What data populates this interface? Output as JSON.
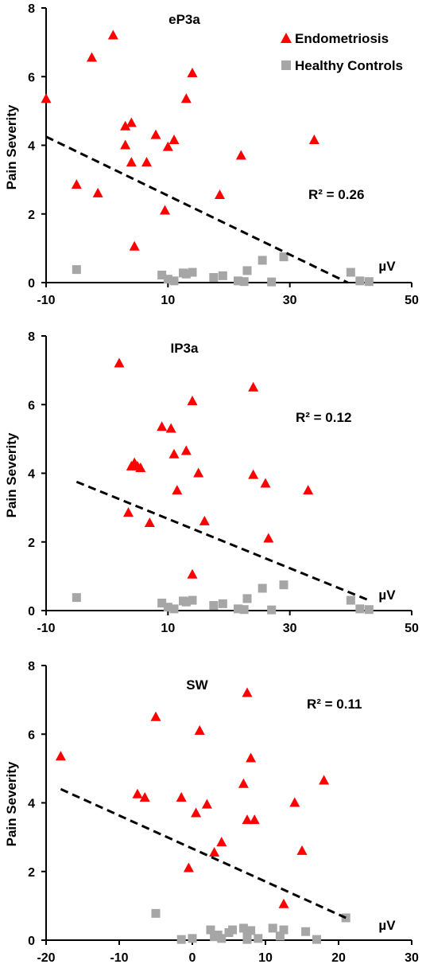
{
  "colors": {
    "endometriosis": "#ff0000",
    "healthy": "#a6a6a6",
    "trendline": "#000000",
    "axis": "#000000"
  },
  "legend": {
    "entries": [
      {
        "label": "Endometriosis",
        "marker": "triangle",
        "color": "#ff0000"
      },
      {
        "label": "Healthy Controls",
        "marker": "square",
        "color": "#a6a6a6"
      }
    ],
    "placement": "top-right of first chart"
  },
  "chart_data": [
    {
      "type": "scatter",
      "title": "eP3a",
      "ylabel": "Pain Severity",
      "unit_label": "µV",
      "r2_label": "R² = 0.26",
      "xlim": [
        -10,
        50
      ],
      "ylim": [
        0,
        8
      ],
      "xticks": [
        -10,
        10,
        30,
        50
      ],
      "yticks": [
        0,
        2,
        4,
        6,
        8
      ],
      "grid": false,
      "series": [
        {
          "name": "Endometriosis",
          "marker": "triangle",
          "points": [
            [
              -10,
              5.35
            ],
            [
              -5,
              2.85
            ],
            [
              -2.5,
              6.55
            ],
            [
              -1.5,
              2.6
            ],
            [
              1,
              7.2
            ],
            [
              3,
              4.55
            ],
            [
              3,
              4.0
            ],
            [
              4,
              4.65
            ],
            [
              4,
              3.5
            ],
            [
              4.5,
              1.05
            ],
            [
              6.5,
              3.5
            ],
            [
              8,
              4.3
            ],
            [
              9.5,
              2.1
            ],
            [
              10,
              3.95
            ],
            [
              11,
              4.15
            ],
            [
              13,
              5.35
            ],
            [
              14,
              6.1
            ],
            [
              18.5,
              2.55
            ],
            [
              22,
              3.7
            ],
            [
              34,
              4.15
            ]
          ]
        },
        {
          "name": "Healthy Controls",
          "marker": "square",
          "points": [
            [
              -5,
              0.38
            ],
            [
              9,
              0.22
            ],
            [
              10,
              0.1
            ],
            [
              11,
              0.05
            ],
            [
              12.5,
              0.28
            ],
            [
              13,
              0.25
            ],
            [
              14,
              0.3
            ],
            [
              17.5,
              0.15
            ],
            [
              19,
              0.2
            ],
            [
              21.5,
              0.05
            ],
            [
              22.5,
              0.03
            ],
            [
              23,
              0.35
            ],
            [
              25.5,
              0.65
            ],
            [
              27,
              0.02
            ],
            [
              29,
              0.75
            ],
            [
              40,
              0.3
            ],
            [
              41.5,
              0.05
            ],
            [
              43,
              0.03
            ]
          ]
        }
      ],
      "trendline": {
        "from": [
          -10,
          4.25
        ],
        "to": [
          39.5,
          0
        ]
      }
    },
    {
      "type": "scatter",
      "title": "IP3a",
      "ylabel": "Pain Severity",
      "unit_label": "µV",
      "r2_label": "R² = 0.12",
      "xlim": [
        -10,
        50
      ],
      "ylim": [
        0,
        8
      ],
      "xticks": [
        -10,
        10,
        30,
        50
      ],
      "yticks": [
        0,
        2,
        4,
        6,
        8
      ],
      "grid": false,
      "series": [
        {
          "name": "Endometriosis",
          "marker": "triangle",
          "points": [
            [
              2,
              7.2
            ],
            [
              3.5,
              2.85
            ],
            [
              4,
              4.2
            ],
            [
              4.5,
              4.3
            ],
            [
              5,
              4.2
            ],
            [
              5.5,
              4.15
            ],
            [
              7,
              2.55
            ],
            [
              9,
              5.35
            ],
            [
              10.5,
              5.3
            ],
            [
              11,
              4.55
            ],
            [
              11.5,
              3.5
            ],
            [
              13,
              4.65
            ],
            [
              14,
              6.1
            ],
            [
              14,
              1.05
            ],
            [
              15,
              4.0
            ],
            [
              16,
              2.6
            ],
            [
              24,
              6.5
            ],
            [
              24,
              3.95
            ],
            [
              26,
              3.7
            ],
            [
              26.5,
              2.1
            ],
            [
              33,
              3.5
            ]
          ]
        },
        {
          "name": "Healthy Controls",
          "marker": "square",
          "points": [
            [
              -5,
              0.38
            ],
            [
              9,
              0.22
            ],
            [
              10,
              0.1
            ],
            [
              11,
              0.05
            ],
            [
              12.5,
              0.28
            ],
            [
              13,
              0.25
            ],
            [
              14,
              0.3
            ],
            [
              17.5,
              0.15
            ],
            [
              19,
              0.2
            ],
            [
              21.5,
              0.05
            ],
            [
              22.5,
              0.03
            ],
            [
              23,
              0.35
            ],
            [
              25.5,
              0.65
            ],
            [
              27,
              0.02
            ],
            [
              29,
              0.75
            ],
            [
              40,
              0.3
            ],
            [
              41.5,
              0.05
            ],
            [
              43,
              0.03
            ]
          ]
        }
      ],
      "trendline": {
        "from": [
          -5,
          3.75
        ],
        "to": [
          43,
          0.3
        ]
      }
    },
    {
      "type": "scatter",
      "title": "SW",
      "ylabel": "Pain Severity",
      "unit_label": "µV",
      "r2_label": "R² = 0.11",
      "xlim": [
        -20,
        30
      ],
      "ylim": [
        0,
        8
      ],
      "xticks": [
        -20,
        -10,
        0,
        10,
        20,
        30
      ],
      "yticks": [
        0,
        2,
        4,
        6,
        8
      ],
      "grid": false,
      "series": [
        {
          "name": "Endometriosis",
          "marker": "triangle",
          "points": [
            [
              -18,
              5.35
            ],
            [
              -7.5,
              4.25
            ],
            [
              -6.5,
              4.15
            ],
            [
              -5,
              6.5
            ],
            [
              -1.5,
              4.15
            ],
            [
              -0.5,
              2.1
            ],
            [
              0.5,
              3.7
            ],
            [
              1,
              6.1
            ],
            [
              2,
              3.95
            ],
            [
              3,
              2.55
            ],
            [
              4,
              2.85
            ],
            [
              7,
              4.55
            ],
            [
              7.5,
              3.5
            ],
            [
              7.5,
              7.2
            ],
            [
              8,
              5.3
            ],
            [
              8.5,
              3.5
            ],
            [
              12.5,
              1.05
            ],
            [
              14,
              4.0
            ],
            [
              15,
              2.6
            ],
            [
              18,
              4.65
            ]
          ]
        },
        {
          "name": "Healthy Controls",
          "marker": "square",
          "points": [
            [
              -5,
              0.78
            ],
            [
              -1.5,
              0.02
            ],
            [
              0,
              0.05
            ],
            [
              2.5,
              0.3
            ],
            [
              3,
              0.1
            ],
            [
              3.5,
              0.15
            ],
            [
              4,
              0.05
            ],
            [
              5,
              0.22
            ],
            [
              5.5,
              0.3
            ],
            [
              7,
              0.35
            ],
            [
              7.5,
              0.15
            ],
            [
              7.5,
              0.02
            ],
            [
              8,
              0.28
            ],
            [
              9,
              0.05
            ],
            [
              11,
              0.35
            ],
            [
              12,
              0.12
            ],
            [
              12.5,
              0.3
            ],
            [
              15.5,
              0.25
            ],
            [
              17,
              0.02
            ],
            [
              21,
              0.65
            ]
          ]
        }
      ],
      "trendline": {
        "from": [
          -18,
          4.4
        ],
        "to": [
          21,
          0.65
        ]
      }
    }
  ]
}
